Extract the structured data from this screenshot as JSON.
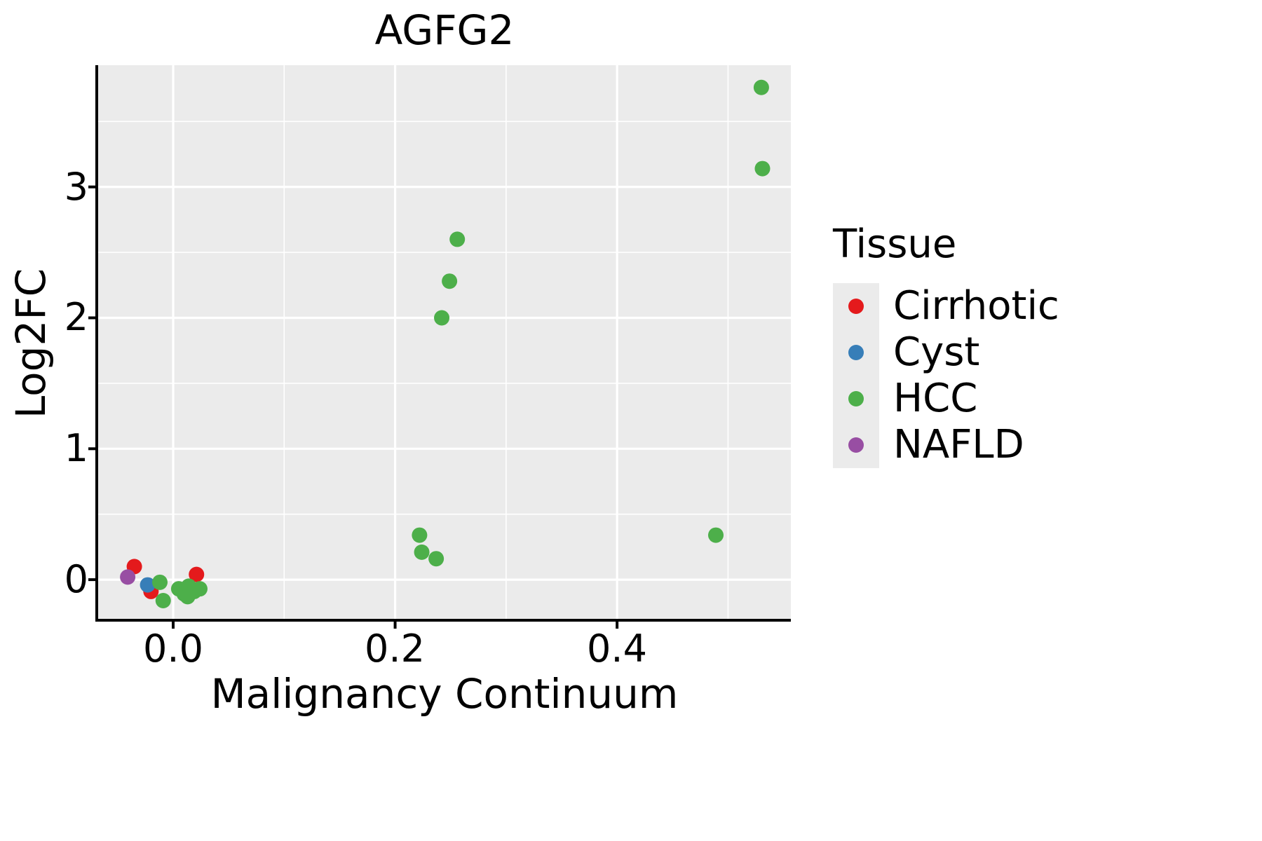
{
  "chart_data": {
    "type": "scatter",
    "title": "AGFG2",
    "xlabel": "Malignancy Continuum",
    "ylabel": "Log2FC",
    "xlim": [
      -0.0676,
      0.5566
    ],
    "ylim": [
      -0.31,
      3.93
    ],
    "x_ticks": [
      0.0,
      0.2,
      0.4
    ],
    "x_tick_labels": [
      "0.0",
      "0.2",
      "0.4"
    ],
    "x_minor_ticks": [
      0.1,
      0.3,
      0.5
    ],
    "y_ticks": [
      0,
      1,
      2,
      3
    ],
    "y_tick_labels": [
      "0",
      "1",
      "2",
      "3"
    ],
    "y_minor_ticks": [
      0.5,
      1.5,
      2.5,
      3.5
    ],
    "grid": true,
    "legend_position": "right",
    "legend_title": "Tissue",
    "panel_bg": "#EBEBEB",
    "grid_color": "#FFFFFF",
    "axis_color": "#000000",
    "point_radius": 11,
    "series": [
      {
        "name": "Cirrhotic",
        "color": "#E41A1C",
        "points": [
          [
            -0.035,
            0.1
          ],
          [
            -0.02,
            -0.09
          ],
          [
            0.021,
            0.04
          ]
        ]
      },
      {
        "name": "Cyst",
        "color": "#377EB8",
        "points": [
          [
            -0.023,
            -0.04
          ]
        ]
      },
      {
        "name": "HCC",
        "color": "#4DAF4A",
        "points": [
          [
            -0.012,
            -0.02
          ],
          [
            -0.009,
            -0.16
          ],
          [
            0.005,
            -0.07
          ],
          [
            0.01,
            -0.11
          ],
          [
            0.014,
            -0.05
          ],
          [
            0.019,
            -0.09
          ],
          [
            0.024,
            -0.07
          ],
          [
            0.013,
            -0.13
          ],
          [
            0.222,
            0.34
          ],
          [
            0.224,
            0.21
          ],
          [
            0.237,
            0.16
          ],
          [
            0.242,
            2.0
          ],
          [
            0.249,
            2.28
          ],
          [
            0.256,
            2.6
          ],
          [
            0.489,
            0.34
          ],
          [
            0.53,
            3.76
          ],
          [
            0.531,
            3.14
          ]
        ]
      },
      {
        "name": "NAFLD",
        "color": "#984EA3",
        "points": [
          [
            -0.041,
            0.02
          ]
        ]
      }
    ]
  }
}
